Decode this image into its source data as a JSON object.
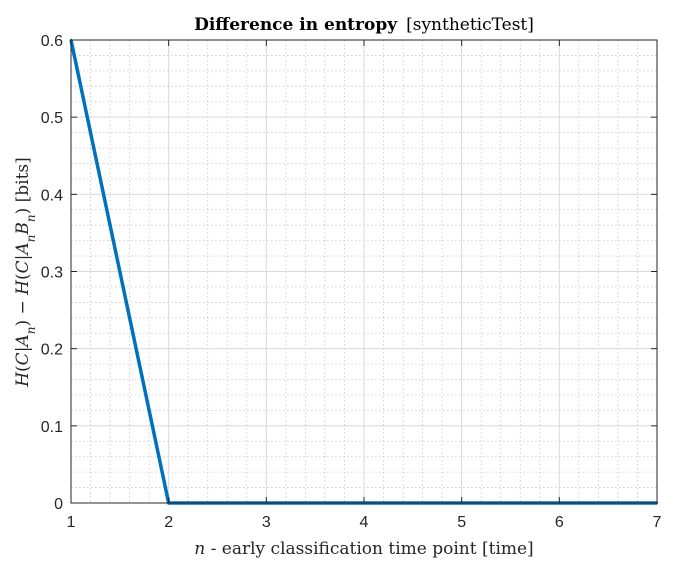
{
  "chart_data": {
    "type": "line",
    "title": {
      "main": "Difference in entropy",
      "sub": "[syntheticTest]"
    },
    "xlabel": {
      "var": "n",
      "rest": " - early classification time point [time]"
    },
    "ylabel": "H(C|A_n) − H(C|A_n B_n) [bits]",
    "xlim": [
      1,
      7
    ],
    "ylim": [
      0,
      0.6
    ],
    "xticks": [
      "1",
      "2",
      "3",
      "4",
      "5",
      "6",
      "7"
    ],
    "yticks": [
      "0",
      "0.1",
      "0.2",
      "0.3",
      "0.4",
      "0.5",
      "0.6"
    ],
    "grid": true,
    "minor_grid": true,
    "series": [
      {
        "color": "#0072BD",
        "x": [
          1,
          2,
          3,
          4,
          5,
          6,
          7
        ],
        "y": [
          0.6,
          0,
          0,
          0,
          0,
          0,
          0
        ]
      }
    ]
  }
}
